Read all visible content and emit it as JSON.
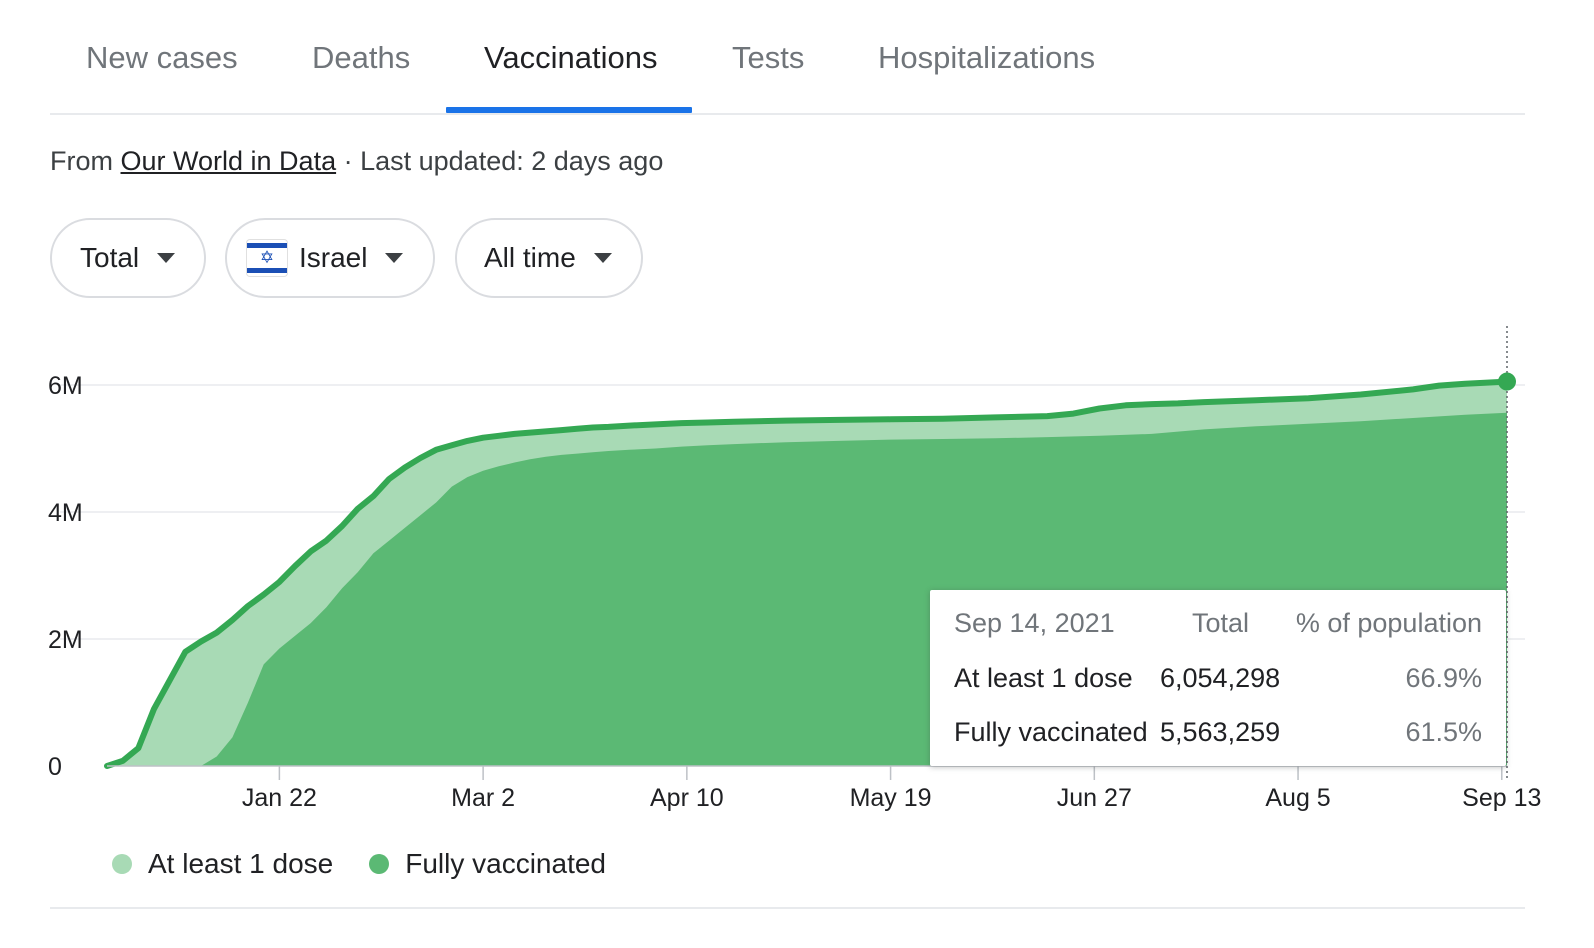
{
  "tabs": [
    {
      "label": "New cases",
      "active": false
    },
    {
      "label": "Deaths",
      "active": false
    },
    {
      "label": "Vaccinations",
      "active": true
    },
    {
      "label": "Tests",
      "active": false
    },
    {
      "label": "Hospitalizations",
      "active": false
    }
  ],
  "source": {
    "prefix": "From",
    "link_text": "Our World in Data",
    "suffix": "· Last updated: 2 days ago"
  },
  "filters": {
    "metric": "Total",
    "country": "Israel",
    "range": "All time"
  },
  "colors": {
    "accent": "#1a73e8",
    "at_least_one_dose": "#a8dab5",
    "fully_vaccinated": "#5bb974",
    "line": "#34a853"
  },
  "tooltip": {
    "date": "Sep 14, 2021",
    "col_total": "Total",
    "col_pct": "% of population",
    "rows": [
      {
        "label": "At least 1 dose",
        "total": "6,054,298",
        "pct": "66.9%"
      },
      {
        "label": "Fully vaccinated",
        "total": "5,563,259",
        "pct": "61.5%"
      }
    ]
  },
  "chart_data": {
    "type": "area",
    "title": "",
    "xlabel": "",
    "ylabel": "",
    "x_start": "2020-12-20",
    "x_ticks": [
      {
        "label": "Jan 22",
        "day": 33
      },
      {
        "label": "Mar 2",
        "day": 72
      },
      {
        "label": "Apr 10",
        "day": 111
      },
      {
        "label": "May 19",
        "day": 150
      },
      {
        "label": "Jun 27",
        "day": 189
      },
      {
        "label": "Aug 5",
        "day": 228
      },
      {
        "label": "Sep 13",
        "day": 267
      }
    ],
    "y_ticks": [
      {
        "label": "0",
        "value": 0
      },
      {
        "label": "2M",
        "value": 2000000
      },
      {
        "label": "4M",
        "value": 4000000
      },
      {
        "label": "6M",
        "value": 6000000
      }
    ],
    "ylim": [
      0,
      6900000
    ],
    "grid": true,
    "legend_position": "bottom-left",
    "series": [
      {
        "name": "At least 1 dose",
        "days": [
          0,
          3,
          6,
          9,
          12,
          15,
          18,
          21,
          24,
          27,
          30,
          33,
          36,
          39,
          42,
          45,
          48,
          51,
          54,
          57,
          60,
          63,
          66,
          69,
          72,
          75,
          78,
          81,
          84,
          87,
          90,
          93,
          96,
          100,
          105,
          110,
          115,
          120,
          130,
          140,
          150,
          160,
          170,
          180,
          185,
          190,
          195,
          200,
          205,
          210,
          220,
          230,
          240,
          250,
          255,
          260,
          268
        ],
        "values": [
          0,
          80000,
          280000,
          900000,
          1350000,
          1800000,
          1960000,
          2100000,
          2300000,
          2520000,
          2700000,
          2900000,
          3150000,
          3380000,
          3550000,
          3780000,
          4050000,
          4250000,
          4520000,
          4700000,
          4850000,
          4980000,
          5050000,
          5120000,
          5170000,
          5200000,
          5230000,
          5250000,
          5270000,
          5290000,
          5310000,
          5330000,
          5340000,
          5360000,
          5380000,
          5400000,
          5410000,
          5420000,
          5440000,
          5450000,
          5460000,
          5470000,
          5490000,
          5510000,
          5550000,
          5630000,
          5680000,
          5700000,
          5710000,
          5730000,
          5760000,
          5790000,
          5850000,
          5930000,
          5990000,
          6020000,
          6054298
        ]
      },
      {
        "name": "Fully vaccinated",
        "days": [
          0,
          18,
          21,
          24,
          27,
          30,
          33,
          36,
          39,
          42,
          45,
          48,
          51,
          54,
          57,
          60,
          63,
          66,
          69,
          72,
          75,
          78,
          81,
          84,
          87,
          90,
          93,
          96,
          100,
          105,
          110,
          115,
          120,
          130,
          140,
          150,
          160,
          170,
          180,
          190,
          200,
          210,
          220,
          230,
          240,
          250,
          260,
          268
        ],
        "values": [
          0,
          0,
          150000,
          450000,
          1000000,
          1600000,
          1850000,
          2050000,
          2250000,
          2500000,
          2800000,
          3050000,
          3350000,
          3550000,
          3750000,
          3950000,
          4150000,
          4400000,
          4550000,
          4650000,
          4720000,
          4780000,
          4830000,
          4870000,
          4900000,
          4920000,
          4940000,
          4960000,
          4980000,
          5000000,
          5030000,
          5050000,
          5070000,
          5100000,
          5120000,
          5140000,
          5150000,
          5160000,
          5180000,
          5200000,
          5230000,
          5300000,
          5350000,
          5390000,
          5430000,
          5480000,
          5530000,
          5563259
        ]
      }
    ]
  }
}
